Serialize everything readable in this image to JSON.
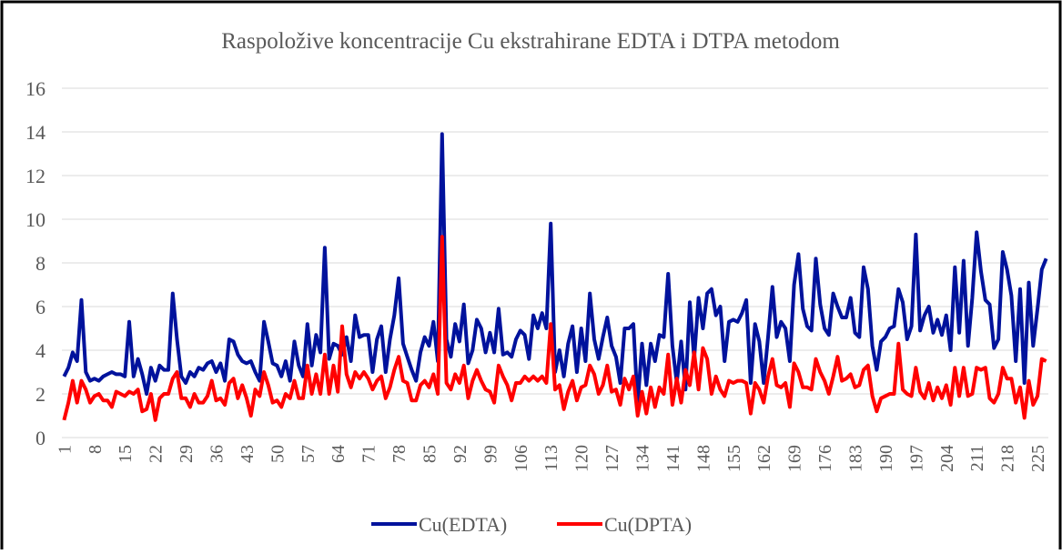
{
  "chart_data": {
    "type": "line",
    "title": "Raspoložive koncentracije Cu ekstrahirane EDTA i DTPA metodom",
    "categories": [
      "1",
      null,
      null,
      null,
      null,
      null,
      null,
      "8",
      null,
      null,
      null,
      null,
      null,
      null,
      "15",
      null,
      null,
      null,
      null,
      null,
      null,
      "22",
      null,
      null,
      null,
      null,
      null,
      null,
      "29",
      null,
      null,
      null,
      null,
      null,
      null,
      "36",
      null,
      null,
      null,
      null,
      null,
      null,
      "43",
      null,
      null,
      null,
      null,
      null,
      null,
      "50",
      null,
      null,
      null,
      null,
      null,
      null,
      "57",
      null,
      null,
      null,
      null,
      null,
      null,
      "64",
      null,
      null,
      null,
      null,
      null,
      null,
      "71",
      null,
      null,
      null,
      null,
      null,
      null,
      "78",
      null,
      null,
      null,
      null,
      null,
      null,
      "85",
      null,
      null,
      null,
      null,
      null,
      null,
      "92",
      null,
      null,
      null,
      null,
      null,
      null,
      "99",
      null,
      null,
      null,
      null,
      null,
      null,
      "106",
      null,
      null,
      null,
      null,
      null,
      null,
      "113",
      null,
      null,
      null,
      null,
      null,
      null,
      "120",
      null,
      null,
      null,
      null,
      null,
      null,
      "127",
      null,
      null,
      null,
      null,
      null,
      null,
      "134",
      null,
      null,
      null,
      null,
      null,
      null,
      "141",
      null,
      null,
      null,
      null,
      null,
      null,
      "148",
      null,
      null,
      null,
      null,
      null,
      null,
      "155",
      null,
      null,
      null,
      null,
      null,
      null,
      "162",
      null,
      null,
      null,
      null,
      null,
      null,
      "169",
      null,
      null,
      null,
      null,
      null,
      null,
      "176",
      null,
      null,
      null,
      null,
      null,
      null,
      "183",
      null,
      null,
      null,
      null,
      null,
      null,
      "190",
      null,
      null,
      null,
      null,
      null,
      null,
      "197",
      null,
      null,
      null,
      null,
      null,
      null,
      "204",
      null,
      null,
      null,
      null,
      null,
      null,
      "211",
      null,
      null,
      null,
      null,
      null,
      null,
      "218",
      null,
      null,
      null,
      null,
      null,
      null,
      "225",
      null,
      null
    ],
    "series": [
      {
        "name": "Cu(EDTA)",
        "color": "#00129c",
        "values": [
          2.8,
          3.2,
          3.9,
          3.5,
          6.3,
          3.0,
          2.6,
          2.7,
          2.6,
          2.8,
          2.9,
          3.0,
          2.9,
          2.9,
          2.8,
          5.3,
          2.8,
          3.6,
          2.9,
          2.0,
          3.2,
          2.6,
          3.3,
          3.1,
          3.1,
          6.6,
          4.5,
          2.8,
          2.5,
          3.0,
          2.8,
          3.2,
          3.1,
          3.4,
          3.5,
          3.0,
          3.4,
          2.6,
          4.5,
          4.4,
          3.8,
          3.5,
          3.4,
          3.5,
          3.0,
          2.6,
          5.3,
          4.4,
          3.4,
          3.3,
          2.8,
          3.5,
          2.6,
          4.4,
          3.3,
          2.8,
          5.2,
          3.3,
          4.7,
          3.9,
          8.7,
          3.6,
          4.3,
          4.2,
          3.8,
          4.6,
          3.5,
          5.6,
          4.6,
          4.7,
          4.7,
          3.0,
          4.5,
          5.1,
          3.0,
          4.5,
          5.6,
          7.3,
          4.3,
          3.7,
          3.1,
          2.6,
          3.9,
          4.6,
          4.2,
          5.3,
          3.5,
          13.9,
          4.5,
          3.7,
          5.2,
          4.4,
          6.1,
          3.4,
          4.0,
          5.4,
          5.0,
          3.9,
          4.8,
          3.9,
          5.9,
          3.8,
          3.9,
          3.7,
          4.5,
          4.9,
          4.7,
          3.6,
          5.6,
          5.0,
          5.7,
          5.0,
          9.8,
          3.0,
          4.0,
          2.8,
          4.3,
          5.1,
          3.0,
          5.0,
          3.5,
          6.6,
          4.5,
          3.6,
          4.6,
          5.5,
          4.2,
          3.7,
          2.5,
          5.0,
          5.0,
          5.2,
          1.5,
          4.3,
          2.4,
          4.3,
          3.5,
          4.7,
          4.6,
          7.5,
          4.2,
          2.5,
          4.4,
          2.2,
          6.2,
          3.6,
          6.4,
          5.0,
          6.6,
          6.8,
          5.6,
          6.0,
          3.5,
          5.3,
          5.4,
          5.3,
          5.7,
          6.3,
          2.5,
          5.2,
          4.4,
          2.5,
          4.6,
          6.9,
          4.6,
          5.3,
          5.0,
          3.5,
          7.0,
          8.4,
          5.9,
          5.1,
          4.9,
          8.2,
          6.1,
          5.0,
          4.7,
          6.6,
          6.0,
          5.5,
          5.5,
          6.4,
          4.8,
          4.6,
          7.8,
          6.8,
          4.2,
          3.1,
          4.4,
          4.6,
          5.0,
          5.1,
          6.8,
          6.2,
          4.5,
          5.1,
          9.3,
          4.9,
          5.6,
          6.0,
          4.8,
          5.4,
          4.7,
          5.6,
          4.0,
          7.8,
          4.8,
          8.1,
          4.2,
          6.4,
          9.4,
          7.6,
          6.3,
          6.1,
          4.1,
          4.5,
          8.5,
          7.7,
          6.5,
          3.5,
          6.8,
          2.5,
          7.1,
          4.2,
          5.9,
          7.7,
          8.2
        ]
      },
      {
        "name": "Cu(DPTA)",
        "color": "#ff0000",
        "values": [
          0.8,
          1.6,
          2.6,
          1.6,
          2.6,
          2.2,
          1.6,
          1.9,
          2.0,
          1.7,
          1.7,
          1.4,
          2.1,
          2.0,
          1.9,
          2.1,
          2.0,
          2.2,
          1.2,
          1.3,
          2.0,
          0.8,
          1.8,
          2.0,
          2.0,
          2.7,
          3.0,
          1.8,
          1.8,
          1.4,
          2.0,
          1.6,
          1.6,
          1.9,
          2.6,
          1.7,
          1.8,
          1.5,
          2.5,
          2.7,
          1.8,
          2.4,
          1.8,
          1.0,
          2.2,
          1.9,
          3.0,
          2.4,
          1.6,
          1.7,
          1.4,
          2.0,
          1.8,
          2.6,
          1.8,
          1.8,
          3.3,
          2.0,
          2.9,
          2.0,
          3.8,
          2.0,
          3.3,
          2.1,
          5.1,
          2.9,
          2.3,
          3.0,
          2.7,
          3.0,
          2.7,
          2.2,
          2.6,
          2.8,
          1.8,
          2.3,
          3.1,
          3.7,
          2.6,
          2.5,
          1.7,
          1.7,
          2.4,
          2.6,
          2.3,
          2.9,
          2.0,
          9.2,
          2.5,
          2.2,
          2.9,
          2.5,
          3.3,
          1.8,
          2.6,
          3.1,
          2.6,
          2.2,
          2.1,
          1.6,
          3.3,
          2.8,
          2.4,
          1.7,
          2.5,
          2.5,
          2.8,
          2.6,
          2.8,
          2.6,
          2.8,
          2.5,
          5.2,
          2.2,
          2.4,
          1.3,
          2.1,
          2.6,
          1.7,
          2.3,
          2.4,
          3.3,
          2.9,
          2.0,
          2.4,
          3.3,
          2.1,
          2.2,
          1.5,
          2.7,
          2.2,
          2.8,
          1.0,
          2.1,
          1.1,
          2.3,
          1.4,
          2.3,
          2.0,
          3.8,
          1.5,
          2.7,
          1.6,
          3.1,
          2.4,
          3.9,
          2.2,
          4.1,
          3.6,
          2.0,
          2.8,
          2.2,
          1.9,
          2.6,
          2.5,
          2.6,
          2.6,
          2.5,
          1.1,
          2.5,
          2.2,
          1.6,
          2.8,
          3.6,
          2.4,
          2.3,
          2.5,
          1.4,
          3.4,
          3.0,
          2.3,
          2.3,
          2.2,
          3.6,
          3.0,
          2.6,
          2.0,
          2.8,
          3.7,
          2.6,
          2.7,
          2.9,
          2.3,
          2.4,
          3.1,
          3.3,
          1.9,
          1.2,
          1.8,
          1.9,
          2.0,
          2.0,
          4.3,
          2.2,
          2.0,
          1.9,
          3.2,
          2.1,
          1.8,
          2.5,
          1.7,
          2.3,
          1.8,
          2.4,
          1.5,
          3.2,
          1.9,
          3.2,
          1.9,
          2.0,
          3.2,
          3.1,
          3.2,
          1.8,
          1.6,
          2.0,
          3.2,
          2.7,
          2.7,
          1.6,
          2.3,
          0.9,
          2.6,
          1.5,
          1.9,
          3.6,
          3.5
        ]
      }
    ],
    "ylim": [
      0,
      16
    ],
    "yticks": [
      0,
      2,
      4,
      6,
      8,
      10,
      12,
      14,
      16
    ],
    "grid": true,
    "legend": "bottom"
  }
}
